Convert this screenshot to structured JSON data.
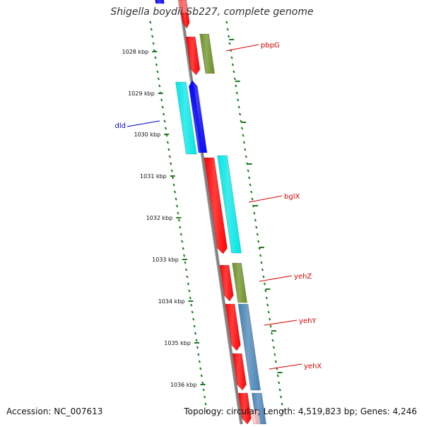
{
  "title": "Shigella boydii Sb227, complete genome",
  "accession": "Accession: NC_007613",
  "summary": "Topology: circular; Length: 4,519,823 bp; Genes: 4,246",
  "colors": {
    "backbone": "#808080",
    "ticks": "#1e7b1e",
    "reverse_gene": "#ff0000",
    "olive_gene": "#6b8e23",
    "cyan_gene": "#00e5e5",
    "blue_gene": "#0000ff",
    "steel_gene": "#4682b4",
    "label_red": "#dd0000",
    "label_blue": "#0000cc"
  },
  "scale_labels": [
    "1028 kbp",
    "1029 kbp",
    "1030 kbp",
    "1031 kbp",
    "1032 kbp",
    "1033 kbp",
    "1034 kbp",
    "1035 kbp",
    "1036 kbp"
  ],
  "gene_labels": [
    {
      "name": "pbpG",
      "color": "red"
    },
    {
      "name": "dld",
      "color": "blue"
    },
    {
      "name": "bglX",
      "color": "red"
    },
    {
      "name": "yehZ",
      "color": "red"
    },
    {
      "name": "yehY",
      "color": "red"
    },
    {
      "name": "yehX",
      "color": "red"
    }
  ]
}
